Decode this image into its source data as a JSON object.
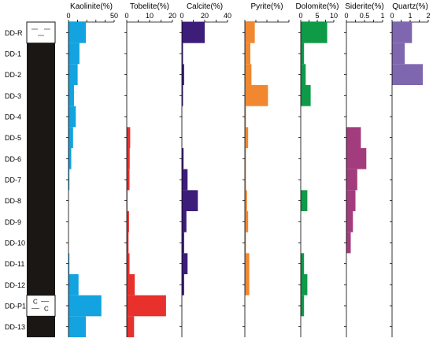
{
  "samples": [
    "DD-R",
    "DD-1",
    "DD-2",
    "DD-3",
    "DD-4",
    "DD-5",
    "DD-6",
    "DD-7",
    "DD-8",
    "DD-9",
    "DD-10",
    "DD-11",
    "DD-12",
    "DD-P1",
    "DD-13"
  ],
  "column": {
    "colors": {
      "rock": "#1a1714",
      "light": "#ffffff",
      "marks": "#555555"
    },
    "light_layers": [
      "DD-R",
      "DD-P1"
    ],
    "layer_marks": [
      "C",
      "C"
    ]
  },
  "chart_data": [
    {
      "type": "bar",
      "orientation": "horizontal",
      "xlabel": "Kaolinite(%)",
      "xlim": [
        0,
        50
      ],
      "ticks": [
        0,
        10,
        20,
        30,
        40,
        50
      ],
      "tick_labels": [
        "0",
        "50"
      ],
      "color": "#12a3e0",
      "values": [
        19,
        12,
        10,
        6,
        8,
        5,
        3,
        1,
        0,
        0,
        0,
        1,
        11,
        36,
        19
      ]
    },
    {
      "type": "bar",
      "orientation": "horizontal",
      "xlabel": "Tobelite(%)",
      "xlim": [
        0,
        20
      ],
      "ticks": [
        0,
        5,
        10,
        15,
        20
      ],
      "tick_labels": [
        "0",
        "10",
        "20"
      ],
      "color": "#e8302c",
      "values": [
        0,
        0,
        0,
        0,
        0,
        1.5,
        1.3,
        1.2,
        0.3,
        1.0,
        0.8,
        1.2,
        3.5,
        17.2,
        3.2
      ]
    },
    {
      "type": "bar",
      "orientation": "horizontal",
      "xlabel": "Calcite(%)",
      "xlim": [
        0,
        40
      ],
      "ticks": [
        0,
        10,
        20,
        30,
        40
      ],
      "tick_labels": [
        "0",
        "20",
        "40"
      ],
      "color": "#3c1d7a",
      "values": [
        20,
        1,
        2,
        1,
        0,
        0,
        1.5,
        5,
        14,
        4,
        2,
        5,
        2,
        0,
        0
      ]
    },
    {
      "type": "bar",
      "orientation": "horizontal",
      "xlabel": "Pyrite(%)",
      "xlim": [
        0,
        40
      ],
      "ticks": [
        0,
        10,
        20,
        30,
        40
      ],
      "tick_labels": [],
      "color": "#f1872f",
      "values": [
        9,
        5,
        6,
        21,
        1,
        3,
        1,
        1,
        2,
        3,
        1,
        4,
        4,
        0,
        0
      ]
    },
    {
      "type": "bar",
      "orientation": "horizontal",
      "xlabel": "Dolomite(%)",
      "xlim": [
        0,
        10
      ],
      "ticks": [
        0,
        2.5,
        5,
        7.5,
        10
      ],
      "tick_labels": [
        "0",
        "5",
        "10"
      ],
      "color": "#0f9a48",
      "values": [
        8,
        1,
        1.5,
        3,
        0,
        0,
        0,
        0,
        2,
        0,
        0,
        1,
        2,
        1,
        0
      ]
    },
    {
      "type": "bar",
      "orientation": "horizontal",
      "xlabel": "Siderite(%)",
      "xlim": [
        0,
        1
      ],
      "ticks": [
        0,
        0.25,
        0.5,
        0.75,
        1
      ],
      "tick_labels": [
        "0",
        "0.5",
        "1"
      ],
      "color": "#a33c7d",
      "values": [
        0,
        0,
        0,
        0,
        0,
        0.4,
        0.55,
        0.3,
        0.25,
        0.18,
        0.12,
        0,
        0,
        0,
        0
      ]
    },
    {
      "type": "bar",
      "orientation": "horizontal",
      "xlabel": "Quartz(%)",
      "xlim": [
        0,
        2
      ],
      "ticks": [
        0,
        0.5,
        1,
        1.5,
        2
      ],
      "tick_labels": [
        "0",
        "1",
        "2"
      ],
      "color": "#7f67b0",
      "values": [
        1.1,
        0.7,
        1.7,
        0,
        0,
        0,
        0,
        0,
        0,
        0,
        0,
        0,
        0,
        0,
        0
      ]
    }
  ]
}
